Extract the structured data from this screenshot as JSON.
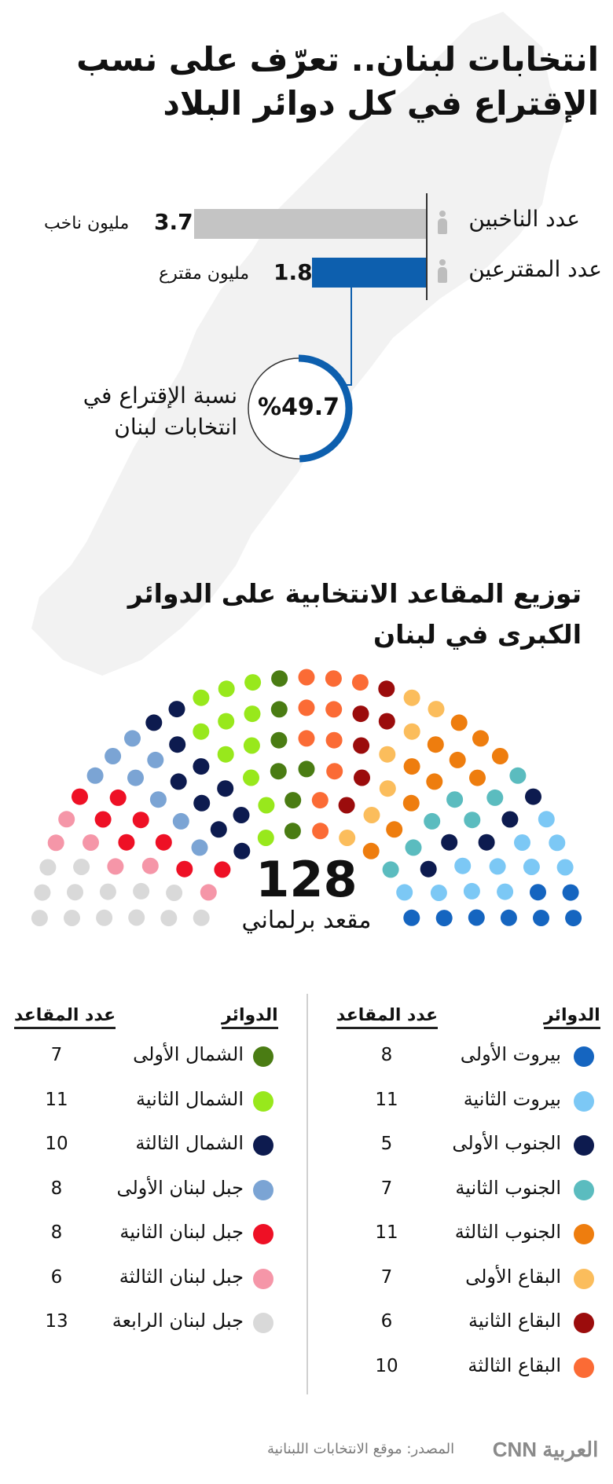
{
  "title": "انتخابات لبنان.. تعرّف على نسب الإقتراع في كل دوائر البلاد",
  "stats": {
    "voters_label": "عدد الناخبين",
    "voters_value": "3.7",
    "voters_unit": "مليون ناخب",
    "turnout_label": "عدد المقترعين",
    "turnout_value": "1.8",
    "turnout_unit": "مليون مقترع",
    "rate_label": "نسبة الإقتراع في انتخابات لبنان",
    "rate_value": "%49.7",
    "rate_fraction": 0.497,
    "voters_color": "#c4c4c4",
    "turnout_color": "#0d5fae"
  },
  "seats_title": "توزيع المقاعد الانتخابية على الدوائر الكبرى في لبنان",
  "seats_total": "128",
  "seats_label": "مقعد برلماني",
  "legend": {
    "header_district": "الدوائر",
    "header_seats": "عدد المقاعد"
  },
  "chart_data": {
    "type": "parliament",
    "total": 128,
    "districts": [
      {
        "name": "بيروت الأولى",
        "seats": 8,
        "color": "#1565c0"
      },
      {
        "name": "بيروت الثانية",
        "seats": 11,
        "color": "#7cc8f5"
      },
      {
        "name": "الجنوب الأولى",
        "seats": 5,
        "color": "#0d1b4f"
      },
      {
        "name": "الجنوب الثانية",
        "seats": 7,
        "color": "#5bbcbf"
      },
      {
        "name": "الجنوب الثالثة",
        "seats": 11,
        "color": "#ee7d0e"
      },
      {
        "name": "البقاع الأولى",
        "seats": 7,
        "color": "#fbbd5c"
      },
      {
        "name": "البقاع الثانية",
        "seats": 6,
        "color": "#9b0c0c"
      },
      {
        "name": "البقاع الثالثة",
        "seats": 10,
        "color": "#fb6b35"
      },
      {
        "name": "الشمال الأولى",
        "seats": 7,
        "color": "#4a7c13"
      },
      {
        "name": "الشمال الثانية",
        "seats": 11,
        "color": "#98e81c"
      },
      {
        "name": "الشمال الثالثة",
        "seats": 10,
        "color": "#0d1b4f"
      },
      {
        "name": "جبل لبنان الأولى",
        "seats": 8,
        "color": "#7ba4d4"
      },
      {
        "name": "جبل لبنان الثانية",
        "seats": 8,
        "color": "#ee1025"
      },
      {
        "name": "جبل لبنان الثالثة",
        "seats": 6,
        "color": "#f596a8"
      },
      {
        "name": "جبل لبنان الرابعة",
        "seats": 13,
        "color": "#d9d9d9"
      }
    ]
  },
  "footer": {
    "source": "المصدر: موقع الانتخابات اللبنانية",
    "logo": "CNN العربية"
  }
}
